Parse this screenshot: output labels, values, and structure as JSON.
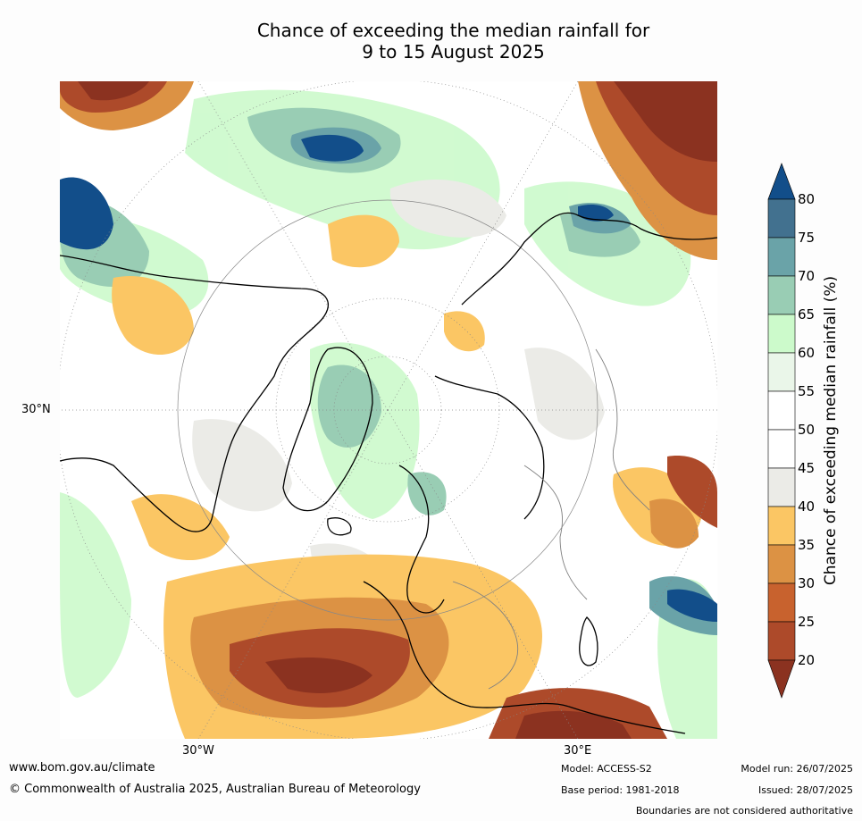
{
  "title_line1": "Chance of exceeding the median rainfall for",
  "title_line2": "9 to 15 August 2025",
  "map": {
    "lat_label": "30°N",
    "lon_labels": [
      "30°W",
      "30°E"
    ],
    "colors": {
      "c20": "#8b3220",
      "c25": "#ad4a2a",
      "c30": "#c8622e",
      "c35": "#dc9244",
      "c40": "#fbc664",
      "c45": "#ebebe7",
      "c55": "#ffffff",
      "c60": "#eaf6e9",
      "c65": "#ccfacb",
      "c70": "#99cdb4",
      "c75": "#6aa3a8",
      "c80": "#42718f",
      "c85": "#124e8a"
    }
  },
  "colorbar": {
    "label": "Chance of exceeding median rainfall (%)",
    "ticks": [
      "80",
      "75",
      "70",
      "65",
      "60",
      "55",
      "50",
      "45",
      "40",
      "35",
      "30",
      "25",
      "20"
    ]
  },
  "footer": {
    "url": "www.bom.gov.au/climate",
    "copyright": "© Commonwealth of Australia 2025, Australian Bureau of Meteorology",
    "model": "Model: ACCESS-S2",
    "base_period": "Base period: 1981-2018",
    "model_run": "Model run: 26/07/2025",
    "issued": "Issued: 28/07/2025",
    "boundaries": "Boundaries are not considered authoritative"
  }
}
